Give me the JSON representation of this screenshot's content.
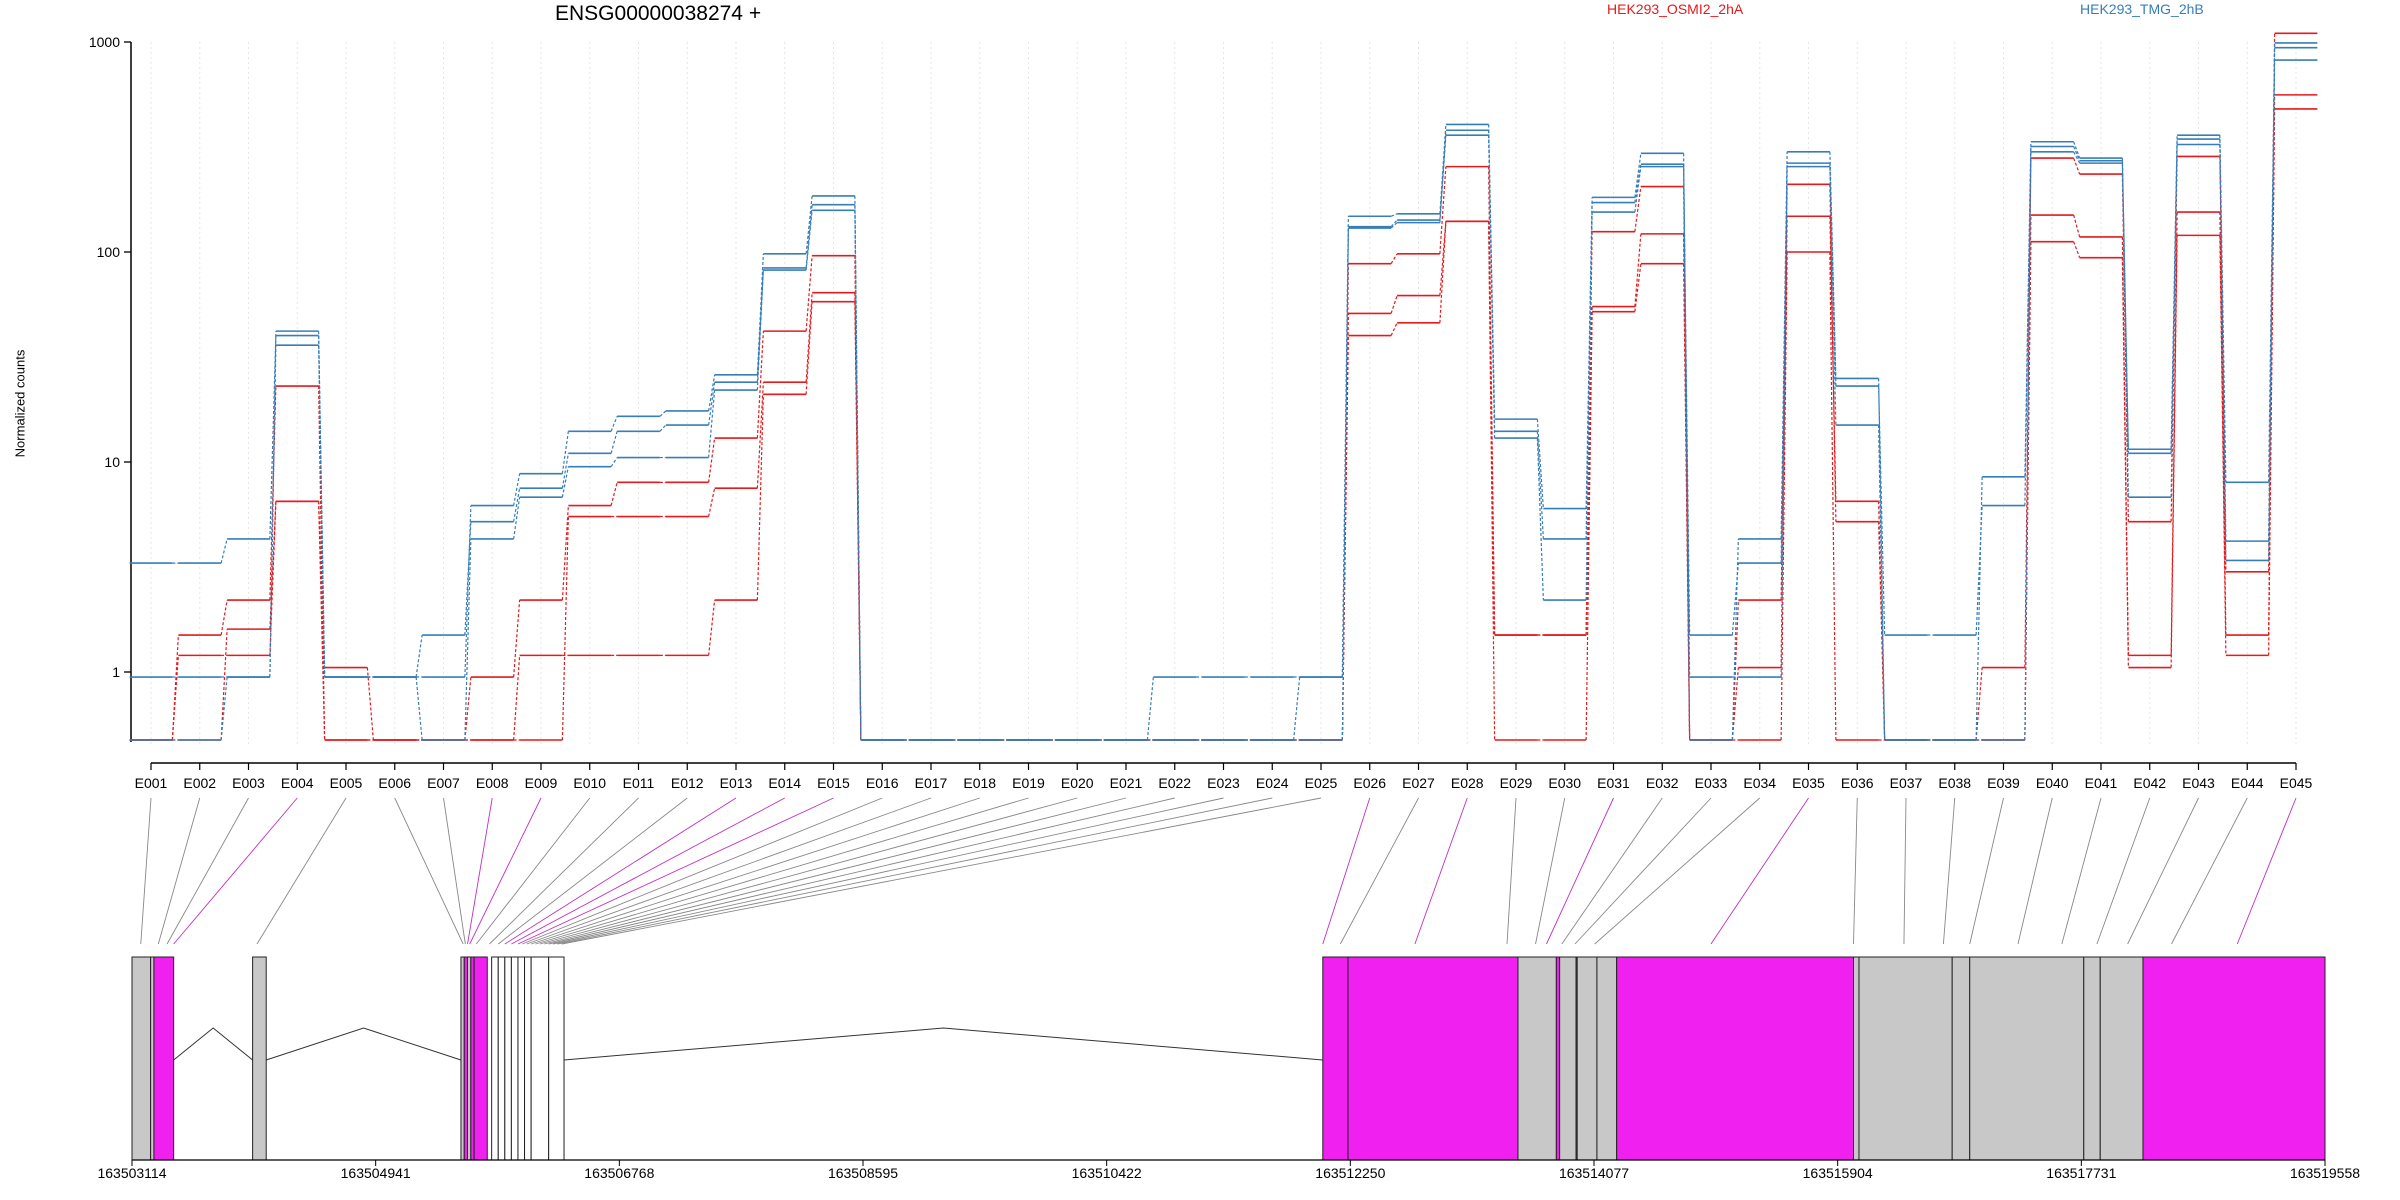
{
  "chart_data": {
    "type": "line",
    "title": "ENSG00000038274 +",
    "ylabel": "Normalized counts",
    "xlabel": "",
    "yscale": "log",
    "ylim": [
      0.5,
      1300
    ],
    "grid": true,
    "legend_placement": "top",
    "yticks": [
      "1",
      "10",
      "100",
      "1000"
    ],
    "categories": [
      "E001",
      "E002",
      "E003",
      "E004",
      "E005",
      "E006",
      "E007",
      "E008",
      "E009",
      "E010",
      "E011",
      "E012",
      "E013",
      "E014",
      "E015",
      "E016",
      "E017",
      "E018",
      "E019",
      "E020",
      "E021",
      "E022",
      "E023",
      "E024",
      "E025",
      "E026",
      "E027",
      "E028",
      "E029",
      "E030",
      "E031",
      "E032",
      "E033",
      "E034",
      "E035",
      "E036",
      "E037",
      "E038",
      "E039",
      "E040",
      "E041",
      "E042",
      "E043",
      "E044",
      "E045"
    ],
    "conditions": [
      {
        "name": "HEK293_OSMI2_2hA",
        "color": "#e41a1c"
      },
      {
        "name": "HEK293_TMG_2hB",
        "color": "#377eb8"
      }
    ],
    "series": [
      {
        "condition": 0,
        "values": [
          0.5,
          1.2,
          1.2,
          6.5,
          1.05,
          0.5,
          0.5,
          0.5,
          1.2,
          1.2,
          1.2,
          1.2,
          2.2,
          21,
          58,
          0.5,
          0.5,
          0.5,
          0.5,
          0.5,
          0.5,
          0.5,
          0.5,
          0.5,
          0.5,
          40,
          46,
          140,
          0.5,
          0.5,
          52,
          88,
          0.5,
          0.5,
          100,
          0.5,
          0.5,
          0.5,
          0.5,
          112,
          94,
          1.05,
          120,
          1.2,
          480
        ]
      },
      {
        "condition": 0,
        "values": [
          0.5,
          0.5,
          1.6,
          6.5,
          0.5,
          0.5,
          0.5,
          0.5,
          0.5,
          5.5,
          5.5,
          5.5,
          7.5,
          24,
          64,
          0.5,
          0.5,
          0.5,
          0.5,
          0.5,
          0.5,
          0.5,
          0.5,
          0.5,
          0.5,
          51,
          62,
          140,
          1.5,
          1.5,
          55,
          122,
          0.5,
          1.05,
          148,
          6.5,
          0.5,
          0.5,
          0.5,
          150,
          118,
          1.2,
          155,
          1.5,
          560
        ]
      },
      {
        "condition": 0,
        "values": [
          0.5,
          1.5,
          2.2,
          23,
          0.5,
          0.5,
          0.5,
          0.95,
          2.2,
          6.2,
          8,
          8,
          13,
          42,
          96,
          0.5,
          0.5,
          0.5,
          0.5,
          0.5,
          0.5,
          0.5,
          0.5,
          0.5,
          0.5,
          88,
          98,
          255,
          1.5,
          1.5,
          125,
          205,
          0.5,
          2.2,
          210,
          5.2,
          0.5,
          0.5,
          1.05,
          280,
          235,
          5.2,
          285,
          3,
          1100
        ]
      },
      {
        "condition": 1,
        "values": [
          0.95,
          0.95,
          0.95,
          36,
          0.95,
          0.95,
          0.5,
          4.3,
          6.8,
          9.5,
          10.5,
          10.5,
          22,
          82,
          158,
          0.5,
          0.5,
          0.5,
          0.5,
          0.5,
          0.5,
          0.5,
          0.5,
          0.5,
          0.5,
          130,
          138,
          360,
          13,
          2.2,
          155,
          255,
          0.95,
          0.95,
          255,
          15,
          0.5,
          0.5,
          0.5,
          300,
          265,
          6.8,
          325,
          3.4,
          820
        ]
      },
      {
        "condition": 1,
        "values": [
          3.3,
          3.3,
          4.3,
          40,
          0.95,
          0.95,
          1.5,
          5.2,
          7.5,
          11,
          14,
          15,
          24,
          84,
          168,
          0.5,
          0.5,
          0.5,
          0.5,
          0.5,
          0.5,
          0.95,
          0.95,
          0.95,
          0.95,
          132,
          142,
          380,
          14,
          4.3,
          172,
          262,
          1.5,
          3.3,
          265,
          23,
          1.5,
          1.5,
          6.2,
          318,
          272,
          11,
          345,
          4.2,
          940
        ]
      },
      {
        "condition": 1,
        "values": [
          0.5,
          0.5,
          0.95,
          42,
          0.95,
          0.95,
          0.95,
          6.2,
          8.8,
          14,
          16.5,
          17.5,
          26,
          98,
          185,
          0.5,
          0.5,
          0.5,
          0.5,
          0.5,
          0.5,
          0.5,
          0.5,
          0.5,
          0.95,
          148,
          152,
          405,
          16,
          6,
          182,
          295,
          0.5,
          4.3,
          300,
          25,
          0.5,
          0.5,
          8.5,
          335,
          280,
          11.5,
          360,
          8,
          990
        ]
      }
    ],
    "gene_model": {
      "coordinate_ticks": [
        "163503114",
        "163504941",
        "163506768",
        "163508595",
        "163510422",
        "163512250",
        "163514077",
        "163515904",
        "163517731",
        "163519558"
      ],
      "exon_fill_default": "#c8c8c8",
      "exon_fill_highlight": "#f020f0",
      "highlighted_bins": [
        "E004",
        "E008",
        "E009",
        "E013",
        "E014",
        "E015",
        "E026",
        "E028",
        "E031",
        "E035",
        "E045"
      ]
    }
  }
}
